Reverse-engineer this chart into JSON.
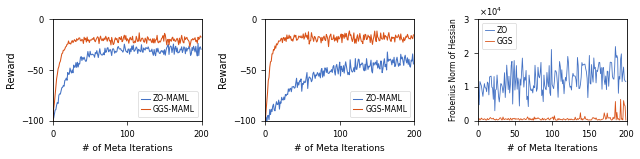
{
  "fig1": {
    "xlabel": "# of Meta Iterations",
    "ylabel": "Reward",
    "xlim": [
      0,
      200
    ],
    "ylim": [
      -100,
      0
    ],
    "yticks": [
      -100,
      -50,
      0
    ],
    "xticks": [
      0,
      100,
      200
    ],
    "legend": [
      "ZO-MAML",
      "GGS-MAML"
    ],
    "zo_plateau": -30,
    "ggs_plateau": -20,
    "zo_rise": 0.05,
    "ggs_rise": 0.14,
    "zo_noise": 2.0,
    "ggs_noise": 1.5
  },
  "fig2": {
    "xlabel": "# of Meta Iterations",
    "ylabel": "Reward",
    "xlim": [
      0,
      200
    ],
    "ylim": [
      -100,
      0
    ],
    "yticks": [
      -100,
      -50,
      0
    ],
    "xticks": [
      0,
      100,
      200
    ],
    "legend": [
      "ZO-MAML",
      "GGS-MAML"
    ],
    "zo_plateau": -42,
    "ggs_plateau": -18,
    "zo_rise": 0.022,
    "ggs_rise": 0.16,
    "zo_noise": 3.0,
    "ggs_noise": 2.0
  },
  "fig3": {
    "xlabel": "# of Meta Iterations",
    "ylabel": "Frobenius Norm of Hessian",
    "xlim": [
      0,
      200
    ],
    "ylim": [
      0,
      30000
    ],
    "yticks": [
      0,
      10000,
      20000,
      30000
    ],
    "xticks": [
      0,
      50,
      100,
      150,
      200
    ],
    "legend": [
      "ZO",
      "GGS"
    ]
  },
  "zo_color": "#4472C4",
  "ggs_color": "#D95319"
}
